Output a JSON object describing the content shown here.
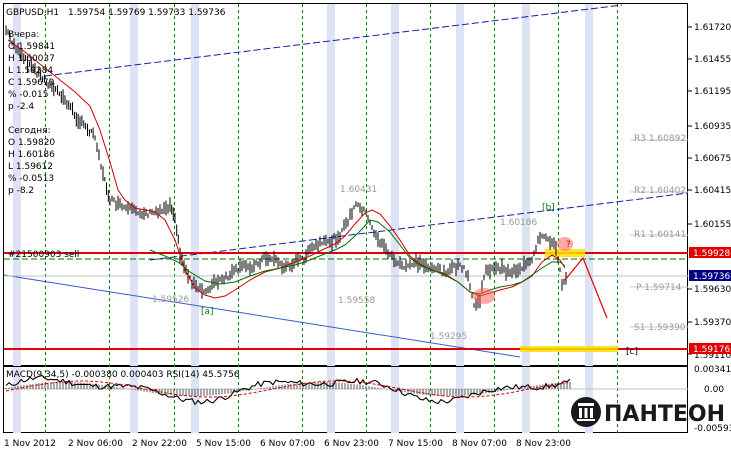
{
  "header": {
    "symbol_tf": "GBPUSD,H1",
    "ohlc": "1.59754 1.59769 1.59733 1.59736"
  },
  "yesterday": {
    "title": "Вчера:",
    "o": "O 1.59841",
    "h": "H 1.60037",
    "l": "L 1.59284",
    "c": "C 1.59670",
    "pct": "% -0.015",
    "p": "p -2.4"
  },
  "today": {
    "title": "Сегодня:",
    "o": "O 1.59820",
    "h": "H 1.60186",
    "l": "L 1.59612",
    "pct": "% -0.0513",
    "p": "p -8.2"
  },
  "price_axis": [
    "1.61720",
    "1.61455",
    "1.61195",
    "1.60935",
    "1.60675",
    "1.60415",
    "1.60155",
    "1.59630",
    "1.59370",
    "1.59110"
  ],
  "price_boxes": {
    "red_level": "1.59928",
    "current": "1.59736",
    "low_level": "1.59176"
  },
  "pivots": {
    "r3": "R3 1.60892",
    "r2": "R2 1.60402",
    "r1": "R1 1.60141",
    "p": "P 1.59714",
    "s1": "S1 1.59390"
  },
  "hline_label": "#21500903 sell",
  "chart_price_labels": {
    "high1": "1.60431",
    "low1": "1.59526",
    "low2": "1.59558",
    "low3": "1.59295",
    "high2": "1.60186"
  },
  "wave_labels": {
    "a": "[a]",
    "b": "[b]",
    "c": "[c]",
    "q": "?"
  },
  "indicator": {
    "title": "MACD(9,34,5) -0.000380 0.000403  RSI(14) 45.5756",
    "axis_top": "0.003416",
    "axis_mid": "0.00",
    "axis_bot": "-0.00593"
  },
  "time_axis": [
    "1 Nov 2012",
    "2 Nov 06:00",
    "2 Nov 22:00",
    "5 Nov 15:00",
    "6 Nov 07:00",
    "6 Nov 23:00",
    "7 Nov 15:00",
    "8 Nov 07:00",
    "8 Nov 23:00"
  ],
  "brand": {
    "name": "ПАНТЕОН",
    "color": "#000000"
  },
  "colors": {
    "grid_vertical": "#008000",
    "band": "#dde3f5",
    "channel": "#0000cc",
    "red_line": "#e00000",
    "yellow": "#ffe000",
    "price_box_blue": "#000080"
  }
}
